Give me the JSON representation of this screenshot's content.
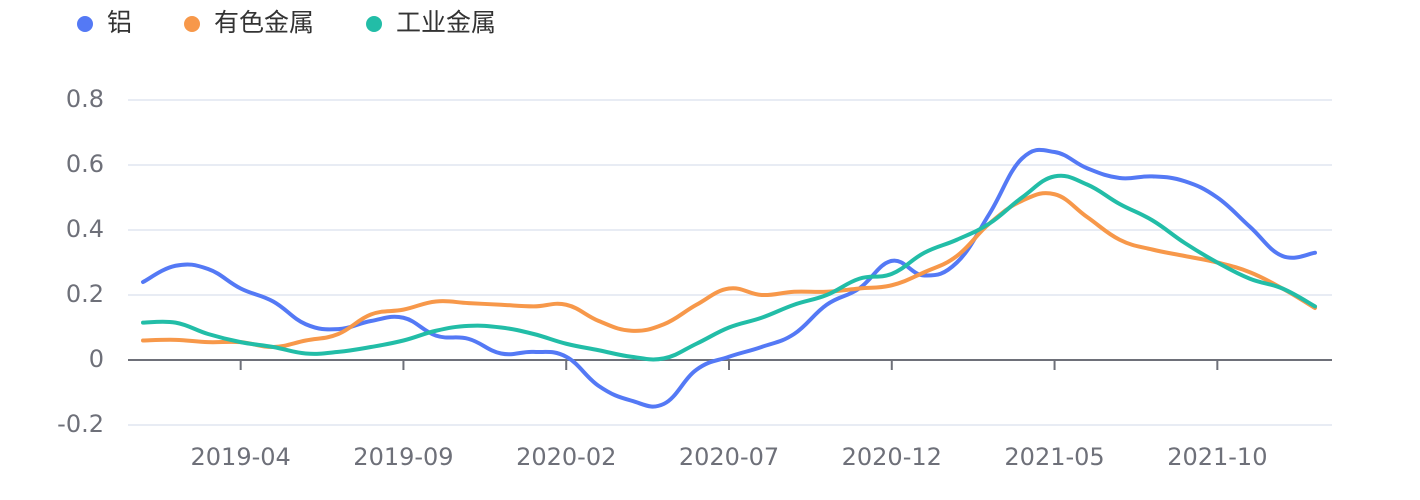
{
  "chart_data": {
    "type": "line",
    "categories": [
      null,
      null,
      null,
      "2019-04",
      null,
      null,
      null,
      null,
      "2019-09",
      null,
      null,
      null,
      null,
      "2020-02",
      null,
      null,
      null,
      null,
      "2020-07",
      null,
      null,
      null,
      null,
      "2020-12",
      null,
      null,
      null,
      null,
      "2021-05",
      null,
      null,
      null,
      null,
      "2021-10",
      null,
      null,
      null
    ],
    "series": [
      {
        "name": "铝",
        "color": "#5479f5",
        "values": [
          0.24,
          0.29,
          0.28,
          0.22,
          0.18,
          0.11,
          0.095,
          0.12,
          0.13,
          0.075,
          0.065,
          0.02,
          0.025,
          0.01,
          -0.08,
          -0.125,
          -0.135,
          -0.03,
          0.01,
          0.04,
          0.08,
          0.17,
          0.22,
          0.305,
          0.26,
          0.3,
          0.45,
          0.62,
          0.64,
          0.59,
          0.56,
          0.565,
          0.55,
          0.5,
          0.41,
          0.32,
          0.33
        ]
      },
      {
        "name": "有色金属",
        "color": "#f7984a",
        "values": [
          0.06,
          0.062,
          0.055,
          0.055,
          0.04,
          0.06,
          0.08,
          0.14,
          0.155,
          0.18,
          0.175,
          0.17,
          0.165,
          0.17,
          0.12,
          0.09,
          0.11,
          0.17,
          0.22,
          0.2,
          0.21,
          0.21,
          0.22,
          0.23,
          0.27,
          0.32,
          0.42,
          0.49,
          0.51,
          0.44,
          0.37,
          0.34,
          0.32,
          0.3,
          0.27,
          0.22,
          0.16
        ]
      },
      {
        "name": "工业金属",
        "color": "#22bda7",
        "values": [
          0.115,
          0.115,
          0.08,
          0.055,
          0.04,
          0.02,
          0.025,
          0.04,
          0.06,
          0.09,
          0.105,
          0.1,
          0.08,
          0.05,
          0.03,
          0.01,
          0.005,
          0.05,
          0.1,
          0.13,
          0.17,
          0.2,
          0.25,
          0.265,
          0.33,
          0.37,
          0.42,
          0.5,
          0.565,
          0.54,
          0.48,
          0.43,
          0.36,
          0.3,
          0.25,
          0.22,
          0.165
        ]
      }
    ],
    "ylim": [
      -0.2,
      0.8
    ],
    "yticks": [
      -0.2,
      0,
      0.2,
      0.4,
      0.6,
      0.8
    ],
    "grid": true,
    "legend": "top-left"
  }
}
